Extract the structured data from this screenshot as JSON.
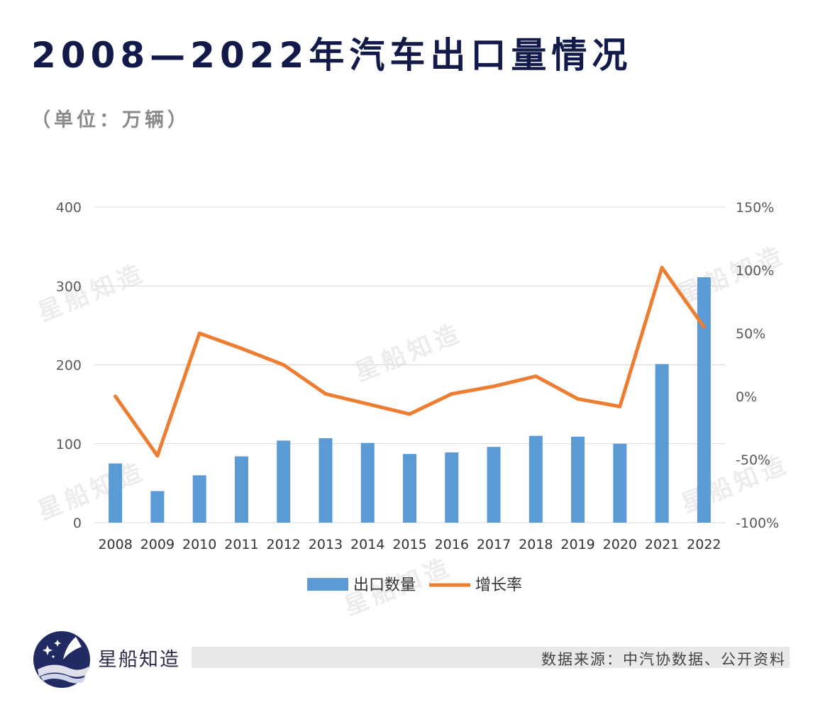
{
  "header": {
    "title": "2008—2022年汽车出口量情况",
    "subtitle": "（单位：万辆）"
  },
  "watermark_text": "星船知造",
  "footer": {
    "brand": "星船知造",
    "source": "数据来源：中汽协数据、公开资料"
  },
  "colors": {
    "bar": "#5b9bd5",
    "line": "#ed7d31",
    "title": "#121a4a",
    "grid": "#d9d9d9"
  },
  "chart_data": {
    "type": "bar",
    "title": "2008—2022年汽车出口量情况",
    "categories": [
      "2008",
      "2009",
      "2010",
      "2011",
      "2012",
      "2013",
      "2014",
      "2015",
      "2016",
      "2017",
      "2018",
      "2019",
      "2020",
      "2021",
      "2022"
    ],
    "series": [
      {
        "name": "出口数量",
        "type": "bar",
        "axis": "left",
        "values": [
          75,
          40,
          60,
          84,
          104,
          107,
          101,
          87,
          89,
          96,
          110,
          109,
          100,
          201,
          311
        ]
      },
      {
        "name": "增长率",
        "type": "line",
        "axis": "right",
        "values": [
          0,
          -47,
          50,
          38,
          25,
          2,
          -6,
          -14,
          2,
          8,
          16,
          -2,
          -8,
          102,
          55
        ]
      }
    ],
    "y_left": {
      "ticks": [
        "400",
        "300",
        "200",
        "100",
        "0"
      ],
      "ylim": [
        0,
        400
      ]
    },
    "y_right": {
      "ticks": [
        "150%",
        "100%",
        "50%",
        "0%",
        "-50%",
        "-100%"
      ],
      "ylim": [
        -100,
        150
      ]
    },
    "legend": [
      "出口数量",
      "增长率"
    ],
    "legend_position": "bottom"
  }
}
